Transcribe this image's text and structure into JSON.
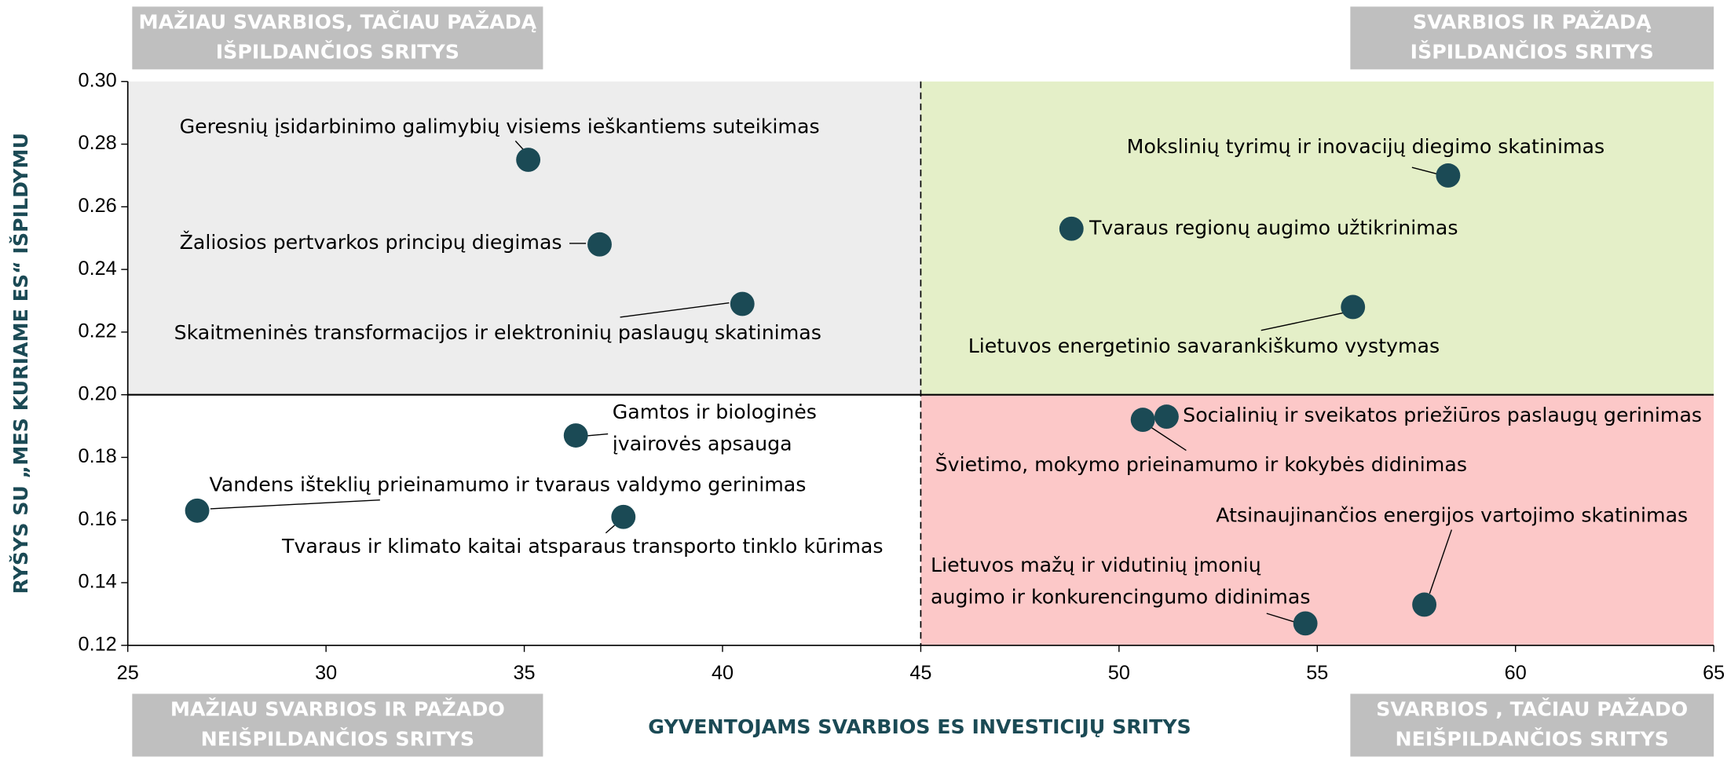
{
  "chart_data": {
    "type": "scatter",
    "xlabel": "GYVENTOJAMS SVARBIOS ES INVESTICIJŲ SRITYS",
    "ylabel": "RYŠYS SU „MES KURIAME ES“ IŠPILDYMU",
    "xlim": [
      25,
      65
    ],
    "xticks": [
      25,
      30,
      35,
      40,
      45,
      50,
      55,
      60,
      65
    ],
    "ylim": [
      0.12,
      0.3
    ],
    "yticks": [
      {
        "value": 0.12,
        "label": "0.12"
      },
      {
        "value": 0.14,
        "label": "0.14"
      },
      {
        "value": 0.16,
        "label": "0.16"
      },
      {
        "value": 0.18,
        "label": "0.18"
      },
      {
        "value": 0.2,
        "label": "0.20"
      },
      {
        "value": 0.22,
        "label": "0.22"
      },
      {
        "value": 0.24,
        "label": "0.24"
      },
      {
        "value": 0.26,
        "label": "0.26"
      },
      {
        "value": 0.28,
        "label": "0.28"
      },
      {
        "value": 0.3,
        "label": "0.30"
      }
    ],
    "quadrant_split": {
      "x": 45,
      "y": 0.2
    },
    "quadrants": {
      "top_left": {
        "lines": [
          "MAŽIAU SVARBIOS, TAČIAU PAŽADĄ",
          "IŠPILDANČIOS SRITYS"
        ],
        "color": "#ededed"
      },
      "top_right": {
        "lines": [
          "SVARBIOS IR PAŽADĄ",
          "IŠPILDANČIOS SRITYS"
        ],
        "color": "#e4efc8"
      },
      "bottom_left": {
        "lines": [
          "MAŽIAU SVARBIOS IR PAŽADO",
          "NEIŠPILDANČIOS SRITYS"
        ],
        "color": "#ffffff"
      },
      "bottom_right": {
        "lines": [
          "SVARBIOS , TAČIAU PAŽADO",
          "NEIŠPILDANČIOS SRITYS"
        ],
        "color": "#fcc8c8"
      }
    },
    "color": "#1b4a55",
    "points": [
      {
        "label": [
          "Geresnių įsidarbinimo galimybių visiems ieškantiems suteikimas"
        ],
        "x": 35.1,
        "y": 0.275
      },
      {
        "label": [
          "Žaliosios pertvarkos principų diegimas"
        ],
        "x": 36.9,
        "y": 0.248
      },
      {
        "label": [
          "Skaitmeninės transformacijos ir elektroninių paslaugų skatinimas"
        ],
        "x": 40.5,
        "y": 0.229
      },
      {
        "label": [
          "Mokslinių tyrimų ir inovacijų diegimo skatinimas"
        ],
        "x": 58.3,
        "y": 0.27
      },
      {
        "label": [
          "Tvaraus regionų augimo užtikrinimas"
        ],
        "x": 48.8,
        "y": 0.253
      },
      {
        "label": [
          "Lietuvos energetinio savarankiškumo vystymas"
        ],
        "x": 55.9,
        "y": 0.228
      },
      {
        "label": [
          "Gamtos ir biologinės",
          "įvairovės apsauga"
        ],
        "x": 36.3,
        "y": 0.187
      },
      {
        "label": [
          "Vandens išteklių prieinamumo ir tvaraus valdymo gerinimas"
        ],
        "x": 26.75,
        "y": 0.163
      },
      {
        "label": [
          "Tvaraus ir klimato kaitai atsparaus transporto tinklo kūrimas"
        ],
        "x": 37.5,
        "y": 0.161
      },
      {
        "label": [
          "Socialinių ir sveikatos priežiūros paslaugų gerinimas"
        ],
        "x": 51.2,
        "y": 0.193
      },
      {
        "label": [
          "Švietimo, mokymo prieinamumo ir kokybės didinimas"
        ],
        "x": 50.6,
        "y": 0.192
      },
      {
        "label": [
          "Atsinaujinančios energijos vartojimo skatinimas"
        ],
        "x": 57.7,
        "y": 0.133
      },
      {
        "label": [
          "Lietuvos mažų ir vidutinių įmonių",
          "augimo ir konkurencingumo didinimas"
        ],
        "x": 54.7,
        "y": 0.127
      }
    ]
  }
}
